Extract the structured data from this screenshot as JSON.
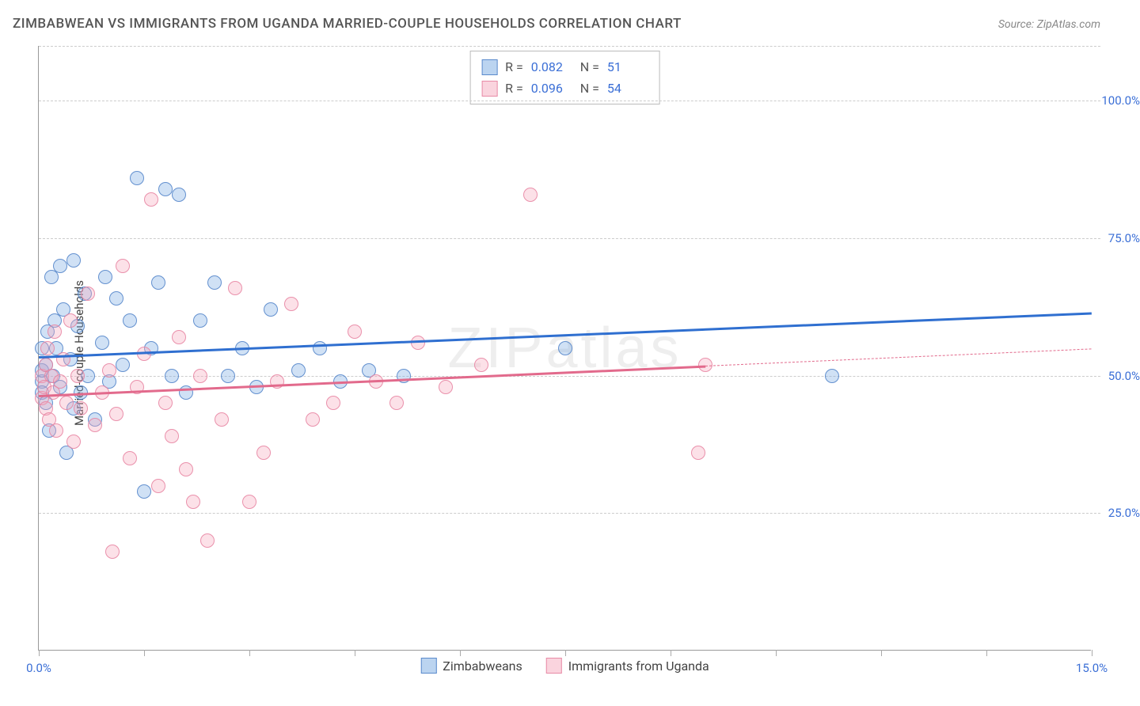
{
  "title": "ZIMBABWEAN VS IMMIGRANTS FROM UGANDA MARRIED-COUPLE HOUSEHOLDS CORRELATION CHART",
  "source": "Source: ZipAtlas.com",
  "watermark": "ZIPatlas",
  "chart": {
    "type": "scatter",
    "background_color": "#ffffff",
    "grid_color": "#cccccc",
    "xlim": [
      0,
      15
    ],
    "ylim": [
      0,
      110
    ],
    "xticks": [
      0,
      1.5,
      3,
      4.5,
      6,
      7.5,
      9,
      10.5,
      12,
      13.5,
      15
    ],
    "xtick_labels": {
      "0": "0.0%",
      "15": "15.0%"
    },
    "yticks": [
      25,
      50,
      75,
      100,
      110
    ],
    "ytick_labels": {
      "25": "25.0%",
      "50": "50.0%",
      "75": "75.0%",
      "100": "100.0%"
    },
    "y_axis_title": "Married-couple Households",
    "marker_radius": 9,
    "series": [
      {
        "name": "Zimbabweans",
        "color_fill": "rgba(120,170,225,0.35)",
        "color_stroke": "rgba(80,130,200,0.85)",
        "class": "blue",
        "R": "0.082",
        "N": "51",
        "trend": {
          "x1": 0,
          "y1": 53.5,
          "x2": 15,
          "y2": 61.5,
          "color": "#2f6fd0",
          "solid_until_x": 15
        },
        "points": [
          [
            0.05,
            49
          ],
          [
            0.05,
            51
          ],
          [
            0.05,
            55
          ],
          [
            0.05,
            47
          ],
          [
            0.1,
            45
          ],
          [
            0.1,
            52
          ],
          [
            0.12,
            58
          ],
          [
            0.15,
            40
          ],
          [
            0.18,
            68
          ],
          [
            0.2,
            50
          ],
          [
            0.22,
            60
          ],
          [
            0.25,
            55
          ],
          [
            0.3,
            70
          ],
          [
            0.3,
            48
          ],
          [
            0.35,
            62
          ],
          [
            0.4,
            36
          ],
          [
            0.45,
            53
          ],
          [
            0.5,
            44
          ],
          [
            0.5,
            71
          ],
          [
            0.55,
            59
          ],
          [
            0.6,
            47
          ],
          [
            0.65,
            65
          ],
          [
            0.7,
            50
          ],
          [
            0.8,
            42
          ],
          [
            0.9,
            56
          ],
          [
            0.95,
            68
          ],
          [
            1.0,
            49
          ],
          [
            1.1,
            64
          ],
          [
            1.2,
            52
          ],
          [
            1.3,
            60
          ],
          [
            1.4,
            86
          ],
          [
            1.5,
            29
          ],
          [
            1.6,
            55
          ],
          [
            1.7,
            67
          ],
          [
            1.8,
            84
          ],
          [
            1.9,
            50
          ],
          [
            2.0,
            83
          ],
          [
            2.1,
            47
          ],
          [
            2.3,
            60
          ],
          [
            2.5,
            67
          ],
          [
            2.7,
            50
          ],
          [
            2.9,
            55
          ],
          [
            3.1,
            48
          ],
          [
            3.3,
            62
          ],
          [
            3.7,
            51
          ],
          [
            4.0,
            55
          ],
          [
            4.3,
            49
          ],
          [
            4.7,
            51
          ],
          [
            5.2,
            50
          ],
          [
            7.5,
            55
          ],
          [
            11.3,
            50
          ]
        ]
      },
      {
        "name": "Immigrants from Uganda",
        "color_fill": "rgba(245,170,190,0.35)",
        "color_stroke": "rgba(230,130,160,0.85)",
        "class": "pink",
        "R": "0.096",
        "N": "54",
        "trend": {
          "x1": 0,
          "y1": 46.5,
          "x2": 15,
          "y2": 55.0,
          "color": "#e26a8c",
          "solid_until_x": 9.5
        },
        "points": [
          [
            0.05,
            46
          ],
          [
            0.05,
            50
          ],
          [
            0.08,
            48
          ],
          [
            0.1,
            44
          ],
          [
            0.1,
            52
          ],
          [
            0.12,
            55
          ],
          [
            0.15,
            42
          ],
          [
            0.18,
            50
          ],
          [
            0.2,
            47
          ],
          [
            0.22,
            58
          ],
          [
            0.25,
            40
          ],
          [
            0.3,
            49
          ],
          [
            0.35,
            53
          ],
          [
            0.4,
            45
          ],
          [
            0.45,
            60
          ],
          [
            0.5,
            38
          ],
          [
            0.55,
            50
          ],
          [
            0.6,
            44
          ],
          [
            0.7,
            65
          ],
          [
            0.8,
            41
          ],
          [
            0.9,
            47
          ],
          [
            1.0,
            51
          ],
          [
            1.05,
            18
          ],
          [
            1.1,
            43
          ],
          [
            1.2,
            70
          ],
          [
            1.3,
            35
          ],
          [
            1.4,
            48
          ],
          [
            1.5,
            54
          ],
          [
            1.6,
            82
          ],
          [
            1.7,
            30
          ],
          [
            1.8,
            45
          ],
          [
            1.9,
            39
          ],
          [
            2.0,
            57
          ],
          [
            2.1,
            33
          ],
          [
            2.2,
            27
          ],
          [
            2.3,
            50
          ],
          [
            2.4,
            20
          ],
          [
            2.6,
            42
          ],
          [
            2.8,
            66
          ],
          [
            3.0,
            27
          ],
          [
            3.2,
            36
          ],
          [
            3.4,
            49
          ],
          [
            3.6,
            63
          ],
          [
            3.9,
            42
          ],
          [
            4.2,
            45
          ],
          [
            4.5,
            58
          ],
          [
            4.8,
            49
          ],
          [
            5.1,
            45
          ],
          [
            5.4,
            56
          ],
          [
            5.8,
            48
          ],
          [
            6.3,
            52
          ],
          [
            7.0,
            83
          ],
          [
            9.4,
            36
          ],
          [
            9.5,
            52
          ]
        ]
      }
    ],
    "bottom_legend": [
      {
        "class": "blue",
        "label": "Zimbabweans"
      },
      {
        "class": "pink",
        "label": "Immigrants from Uganda"
      }
    ]
  }
}
